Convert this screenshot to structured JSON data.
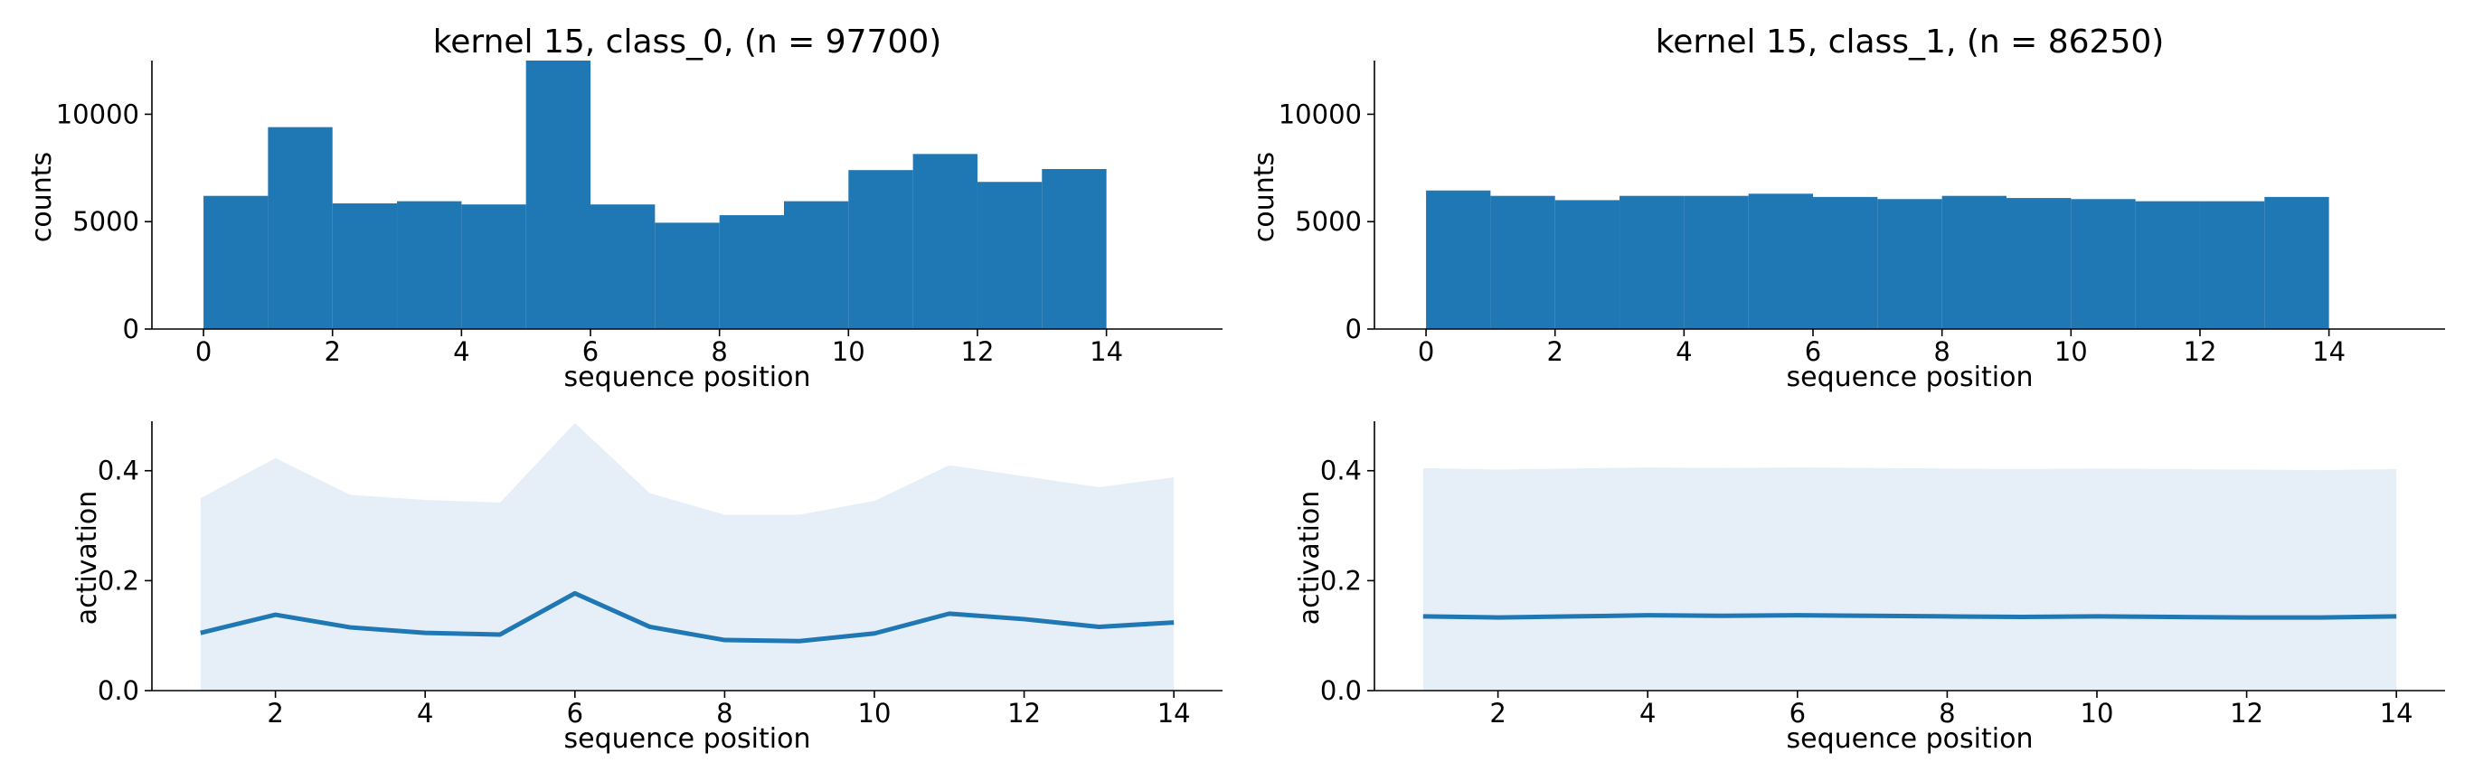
{
  "chart_data": [
    {
      "type": "bar",
      "title": "kernel 15, class_0, (n = 97700)",
      "xlabel": "sequence position",
      "ylabel": "counts",
      "bin_edges": [
        0,
        1,
        2,
        3,
        4,
        5,
        6,
        7,
        8,
        9,
        10,
        11,
        12,
        13,
        14
      ],
      "values": [
        6200,
        9400,
        5850,
        5950,
        5800,
        12500,
        5800,
        4950,
        5300,
        5950,
        7400,
        8150,
        6850,
        7450
      ],
      "xlim": [
        -0.8,
        15.8
      ],
      "ylim": [
        0,
        12500
      ],
      "xticks": [
        0,
        2,
        4,
        6,
        8,
        10,
        12,
        14
      ],
      "yticks": [
        0,
        5000,
        10000
      ],
      "color": "#1f77b4"
    },
    {
      "type": "bar",
      "title": "kernel 15, class_1, (n = 86250)",
      "xlabel": "sequence position",
      "ylabel": "counts",
      "bin_edges": [
        0,
        1,
        2,
        3,
        4,
        5,
        6,
        7,
        8,
        9,
        10,
        11,
        12,
        13,
        14
      ],
      "values": [
        6450,
        6200,
        6000,
        6200,
        6200,
        6300,
        6150,
        6050,
        6200,
        6100,
        6050,
        5950,
        5950,
        6150
      ],
      "xlim": [
        -0.8,
        15.8
      ],
      "ylim": [
        0,
        12500
      ],
      "xticks": [
        0,
        2,
        4,
        6,
        8,
        10,
        12,
        14
      ],
      "yticks": [
        0,
        5000,
        10000
      ],
      "color": "#1f77b4"
    },
    {
      "type": "area",
      "title": "",
      "xlabel": "sequence position",
      "ylabel": "activation",
      "x": [
        1,
        2,
        3,
        4,
        5,
        6,
        7,
        8,
        9,
        10,
        11,
        12,
        13,
        14
      ],
      "series": [
        {
          "values": [
            0.105,
            0.138,
            0.115,
            0.105,
            0.102,
            0.177,
            0.116,
            0.092,
            0.09,
            0.104,
            0.14,
            0.13,
            0.116,
            0.124
          ]
        }
      ],
      "band_upper": [
        0.35,
        0.423,
        0.356,
        0.347,
        0.342,
        0.487,
        0.359,
        0.32,
        0.32,
        0.345,
        0.41,
        0.39,
        0.37,
        0.388
      ],
      "band_lower": [
        0,
        0,
        0,
        0,
        0,
        0,
        0,
        0,
        0,
        0,
        0,
        0,
        0,
        0
      ],
      "xlim": [
        0.35,
        14.65
      ],
      "ylim": [
        0,
        0.49
      ],
      "xticks": [
        2,
        4,
        6,
        8,
        10,
        12,
        14
      ],
      "yticks": [
        0.0,
        0.2,
        0.4
      ],
      "ytick_labels": [
        "0.0",
        "0.2",
        "0.4"
      ],
      "line_color": "#1f77b4",
      "band_color": "#e6eff8"
    },
    {
      "type": "area",
      "title": "",
      "xlabel": "sequence position",
      "ylabel": "activation",
      "x": [
        1,
        2,
        3,
        4,
        5,
        6,
        7,
        8,
        9,
        10,
        11,
        12,
        13,
        14
      ],
      "series": [
        {
          "values": [
            0.135,
            0.133,
            0.135,
            0.137,
            0.136,
            0.137,
            0.136,
            0.135,
            0.134,
            0.135,
            0.134,
            0.133,
            0.133,
            0.135
          ]
        }
      ],
      "band_upper": [
        0.405,
        0.402,
        0.404,
        0.406,
        0.405,
        0.406,
        0.405,
        0.404,
        0.403,
        0.404,
        0.403,
        0.402,
        0.401,
        0.403
      ],
      "band_lower": [
        0,
        0,
        0,
        0,
        0,
        0,
        0,
        0,
        0,
        0,
        0,
        0,
        0,
        0
      ],
      "xlim": [
        0.35,
        14.65
      ],
      "ylim": [
        0,
        0.49
      ],
      "xticks": [
        2,
        4,
        6,
        8,
        10,
        12,
        14
      ],
      "yticks": [
        0.0,
        0.2,
        0.4
      ],
      "ytick_labels": [
        "0.0",
        "0.2",
        "0.4"
      ],
      "line_color": "#1f77b4",
      "band_color": "#e6eff8"
    }
  ]
}
